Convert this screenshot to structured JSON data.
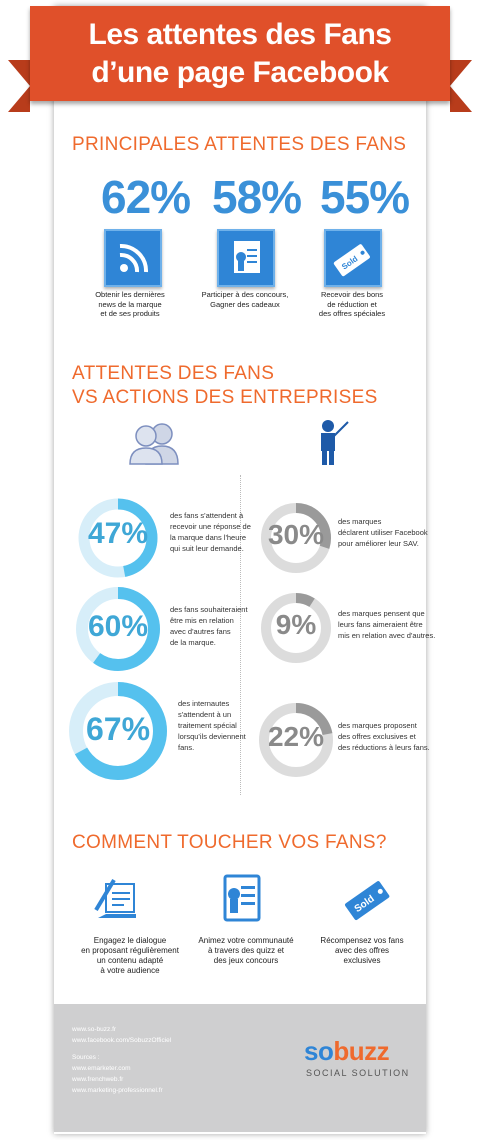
{
  "header": {
    "line1": "Les attentes des Fans",
    "line2": "d’une page Facebook"
  },
  "section1": {
    "title": "PRINCIPALES ATTENTES DES FANS",
    "items": [
      {
        "pct": "62%",
        "icon": "rss-icon",
        "caption": [
          "Obtenir les dernières",
          "news de la marque",
          "et de ses produits"
        ]
      },
      {
        "pct": "58%",
        "icon": "certificate-icon",
        "caption": [
          "Participer à des concours,",
          "Gagner des cadeaux"
        ]
      },
      {
        "pct": "55%",
        "icon": "sold-tag-icon",
        "caption": [
          "Recevoir des bons",
          "de réduction et",
          "des offres spéciales"
        ]
      }
    ]
  },
  "section2": {
    "title_line1": "ATTENTES DES FANS",
    "title_line2": "VS ACTIONS DES ENTREPRISES",
    "fans": [
      {
        "pct": "47%",
        "value": 47,
        "text": [
          "des fans s'attendent à",
          "recevoir une réponse de",
          "la marque dans l'heure",
          "qui suit leur demande."
        ]
      },
      {
        "pct": "60%",
        "value": 60,
        "text": [
          "des fans souhaiteraient",
          "être mis en relation",
          "avec d'autres fans",
          "de la marque."
        ]
      },
      {
        "pct": "67%",
        "value": 67,
        "text": [
          "des internautes",
          "s'attendent à un",
          "traitement spécial",
          "lorsqu'ils deviennent",
          "fans."
        ]
      }
    ],
    "brands": [
      {
        "pct": "30%",
        "value": 30,
        "text": [
          "des marques",
          "déclarent utiliser Facebook",
          "pour améliorer leur SAV."
        ]
      },
      {
        "pct": "9%",
        "value": 9,
        "text": [
          "des marques pensent que",
          "leurs fans aimeraient être",
          "mis en relation avec d'autres."
        ]
      },
      {
        "pct": "22%",
        "value": 22,
        "text": [
          "des marques proposent",
          "des offres exclusives et",
          "des réductions à leurs fans."
        ]
      }
    ]
  },
  "section3": {
    "title": "COMMENT TOUCHER VOS FANS?",
    "items": [
      {
        "icon": "writing-icon",
        "caption": [
          "Engagez le dialogue",
          "en proposant régulièrement",
          "un contenu adapté",
          "à votre audience"
        ]
      },
      {
        "icon": "certificate-icon",
        "caption": [
          "Animez votre communauté",
          "à travers des quizz et",
          "des jeux concours"
        ]
      },
      {
        "icon": "sold-tag-icon",
        "caption": [
          "Récompensez vos fans",
          "avec des offres",
          "exclusives"
        ]
      }
    ]
  },
  "footer": {
    "links": [
      "www.so-buzz.fr",
      "www.facebook.com/SobuzzOfficiel"
    ],
    "sources_label": "Sources :",
    "sources": [
      "www.emarketer.com",
      "www.frenchweb.fr",
      "www.marketing-professionnel.fr"
    ],
    "brand_so": "so",
    "brand_buzz": "buzz",
    "tagline": "SOCIAL SOLUTION"
  },
  "colors": {
    "orange": "#ef6a2d",
    "blue": "#3a90d8",
    "ring_blue": "#55c1ee",
    "ring_grey": "#9a9a9a",
    "ribbon": "#e0502a"
  }
}
